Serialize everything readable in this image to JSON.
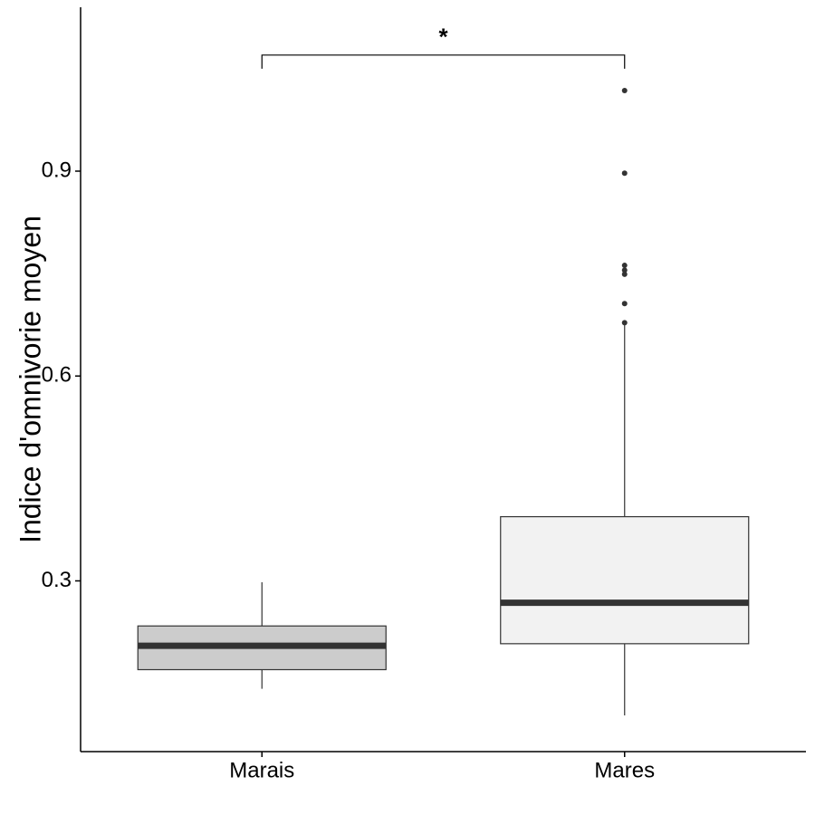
{
  "chart_data": {
    "type": "boxplot",
    "title": "",
    "xlabel": "",
    "ylabel": "Indice d'omnivorie moyen",
    "ylim": [
      0.05,
      1.14
    ],
    "yticks": [
      0.3,
      0.6,
      0.9
    ],
    "ytick_labels": [
      "0.3",
      "0.6",
      "0.9"
    ],
    "grid": false,
    "legend": "none",
    "categories": [
      "Marais",
      "Mares"
    ],
    "boxes": [
      {
        "category": "Marais",
        "lower_whisker": 0.142,
        "q1": 0.17,
        "median": 0.205,
        "q3": 0.234,
        "upper_whisker": 0.298,
        "outliers": [],
        "fill": "#cccccc"
      },
      {
        "category": "Mares",
        "lower_whisker": 0.103,
        "q1": 0.208,
        "median": 0.268,
        "q3": 0.394,
        "upper_whisker": 0.677,
        "outliers": [
          0.678,
          0.706,
          0.749,
          0.755,
          0.762,
          0.897,
          1.018
        ],
        "fill": "#f2f2f2"
      }
    ],
    "significance": {
      "from": "Marais",
      "to": "Mares",
      "y": 1.07,
      "tip_y": 1.05,
      "label": "*"
    },
    "colors": {
      "median_line": "#333333",
      "box_stroke": "#333333",
      "axis": "#000000",
      "outlier": "#333333"
    }
  }
}
